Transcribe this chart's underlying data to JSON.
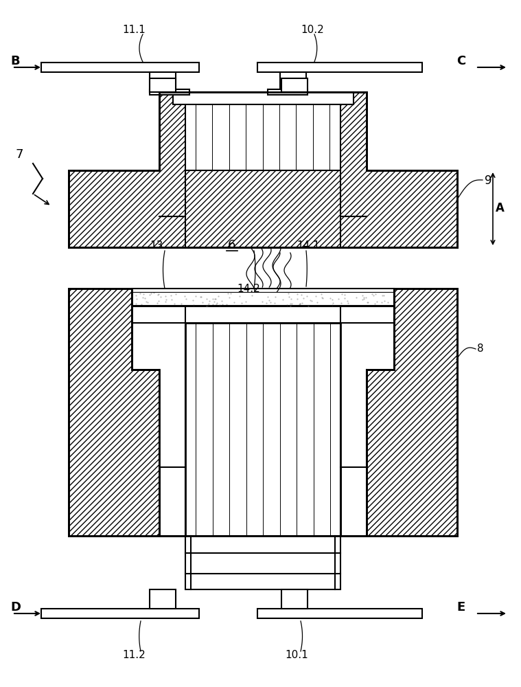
{
  "bg_color": "#ffffff",
  "line_color": "#000000",
  "fig_width": 7.59,
  "fig_height": 10.0,
  "labels": {
    "11_1": "11.1",
    "10_2": "10.2",
    "B": "B",
    "C": "C",
    "A": "A",
    "7": "7",
    "9": "9",
    "14_2": "14.2",
    "13": "13",
    "14_1": "14.1",
    "6": "6",
    "8": "8",
    "D": "D",
    "E": "E",
    "11_2": "11.2",
    "10_1": "10.1"
  }
}
